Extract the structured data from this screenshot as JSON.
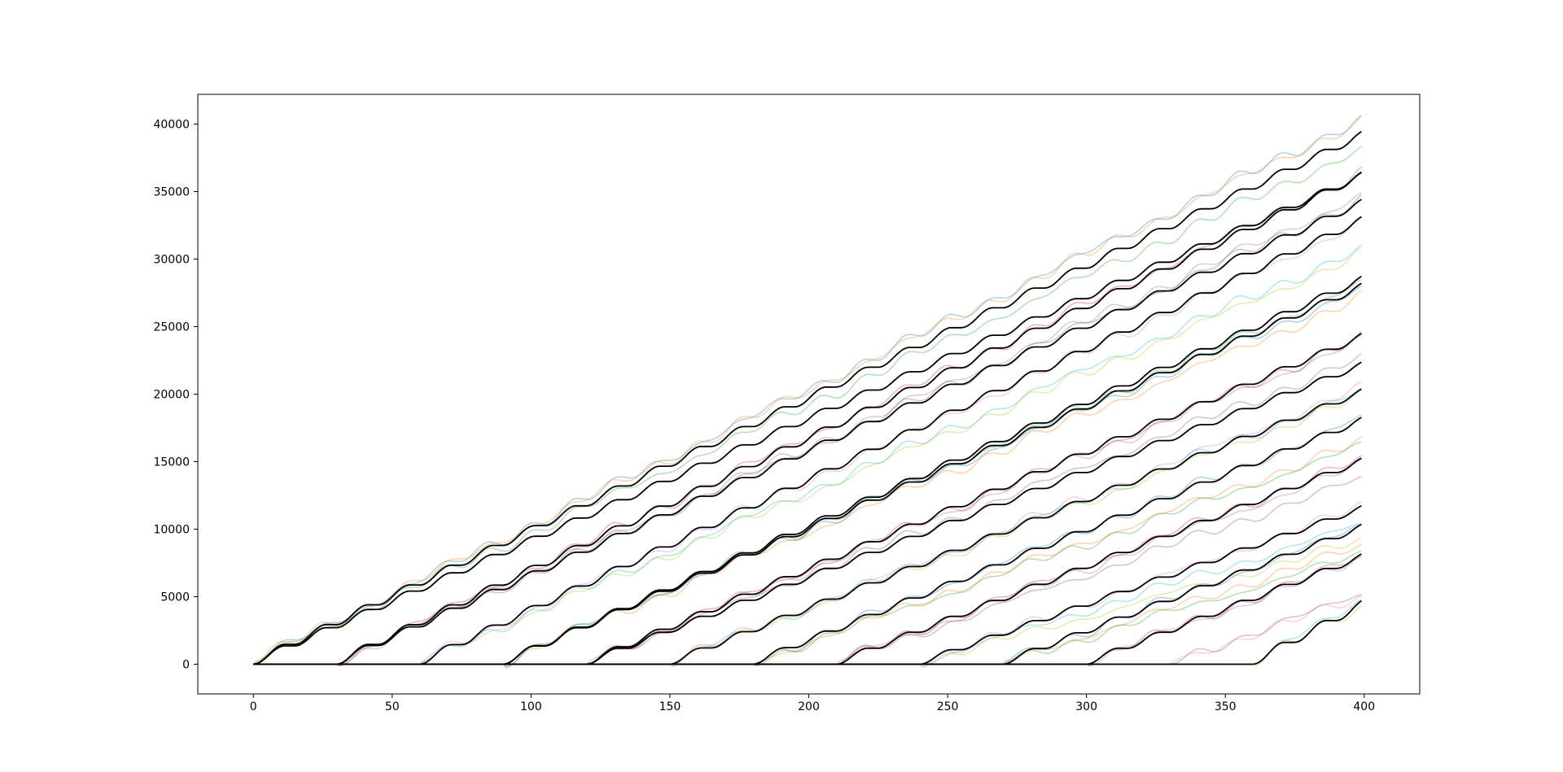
{
  "chart_data": {
    "type": "line",
    "title": "",
    "xlabel": "",
    "ylabel": "",
    "xlim": [
      -20,
      420
    ],
    "ylim": [
      -2200,
      42200
    ],
    "x_ticks": [
      0,
      50,
      100,
      150,
      200,
      250,
      300,
      350,
      400
    ],
    "y_ticks": [
      0,
      5000,
      10000,
      15000,
      20000,
      25000,
      30000,
      35000,
      40000
    ],
    "x_tick_labels": [
      "0",
      "50",
      "100",
      "150",
      "200",
      "250",
      "300",
      "350",
      "400"
    ],
    "y_tick_labels": [
      "0",
      "5000",
      "10000",
      "15000",
      "20000",
      "25000",
      "30000",
      "35000",
      "40000"
    ],
    "grid": false,
    "legend": "none",
    "x_end": 399,
    "staircase_period": 15,
    "step_rise": 2000,
    "reference_color": "#000000",
    "estimate_palette": [
      "#1f77b4",
      "#ff7f0e",
      "#2ca02c",
      "#d62728",
      "#9467bd",
      "#8c564b",
      "#e377c2",
      "#17becf",
      "#bcbd22"
    ],
    "estimate_opacity": 0.35,
    "reference_series": [
      {
        "start": 0,
        "y_end": 39000
      },
      {
        "start": 0,
        "y_end": 36000
      },
      {
        "start": 30,
        "y_end": 36000
      },
      {
        "start": 30,
        "y_end": 34000
      },
      {
        "start": 60,
        "y_end": 32700
      },
      {
        "start": 90,
        "y_end": 28300
      },
      {
        "start": 90,
        "y_end": 27800
      },
      {
        "start": 120,
        "y_end": 24100
      },
      {
        "start": 120,
        "y_end": 22000
      },
      {
        "start": 150,
        "y_end": 20000
      },
      {
        "start": 180,
        "y_end": 17900
      },
      {
        "start": 210,
        "y_end": 14900
      },
      {
        "start": 240,
        "y_end": 11400
      },
      {
        "start": 270,
        "y_end": 10000
      },
      {
        "start": 300,
        "y_end": 7800
      },
      {
        "start": 360,
        "y_end": 4200
      }
    ],
    "estimate_series": [
      {
        "start": 0,
        "y_end": 40200
      },
      {
        "start": 0,
        "y_end": 40100
      },
      {
        "start": 0,
        "y_end": 38000
      },
      {
        "start": 30,
        "y_end": 36200
      },
      {
        "start": 30,
        "y_end": 34500
      },
      {
        "start": 30,
        "y_end": 34200
      },
      {
        "start": 60,
        "y_end": 32500
      },
      {
        "start": 60,
        "y_end": 30600
      },
      {
        "start": 60,
        "y_end": 30200
      },
      {
        "start": 90,
        "y_end": 27600
      },
      {
        "start": 90,
        "y_end": 27000
      },
      {
        "start": 90,
        "y_end": 28000
      },
      {
        "start": 120,
        "y_end": 24000
      },
      {
        "start": 120,
        "y_end": 23800
      },
      {
        "start": 120,
        "y_end": 22500
      },
      {
        "start": 150,
        "y_end": 20300
      },
      {
        "start": 150,
        "y_end": 20000
      },
      {
        "start": 150,
        "y_end": 19700
      },
      {
        "start": 180,
        "y_end": 18000
      },
      {
        "start": 180,
        "y_end": 16300
      },
      {
        "start": 180,
        "y_end": 16000
      },
      {
        "start": 210,
        "y_end": 15000
      },
      {
        "start": 210,
        "y_end": 14600
      },
      {
        "start": 210,
        "y_end": 13600
      },
      {
        "start": 240,
        "y_end": 11500
      },
      {
        "start": 240,
        "y_end": 10200
      },
      {
        "start": 240,
        "y_end": 9000
      },
      {
        "start": 270,
        "y_end": 10000
      },
      {
        "start": 270,
        "y_end": 8600
      },
      {
        "start": 270,
        "y_end": 8000
      },
      {
        "start": 300,
        "y_end": 7800
      },
      {
        "start": 300,
        "y_end": 7600
      },
      {
        "start": 330,
        "y_end": 5000
      },
      {
        "start": 330,
        "y_end": 4800
      },
      {
        "start": 360,
        "y_end": 4400
      },
      {
        "start": 360,
        "y_end": 4000
      }
    ]
  }
}
